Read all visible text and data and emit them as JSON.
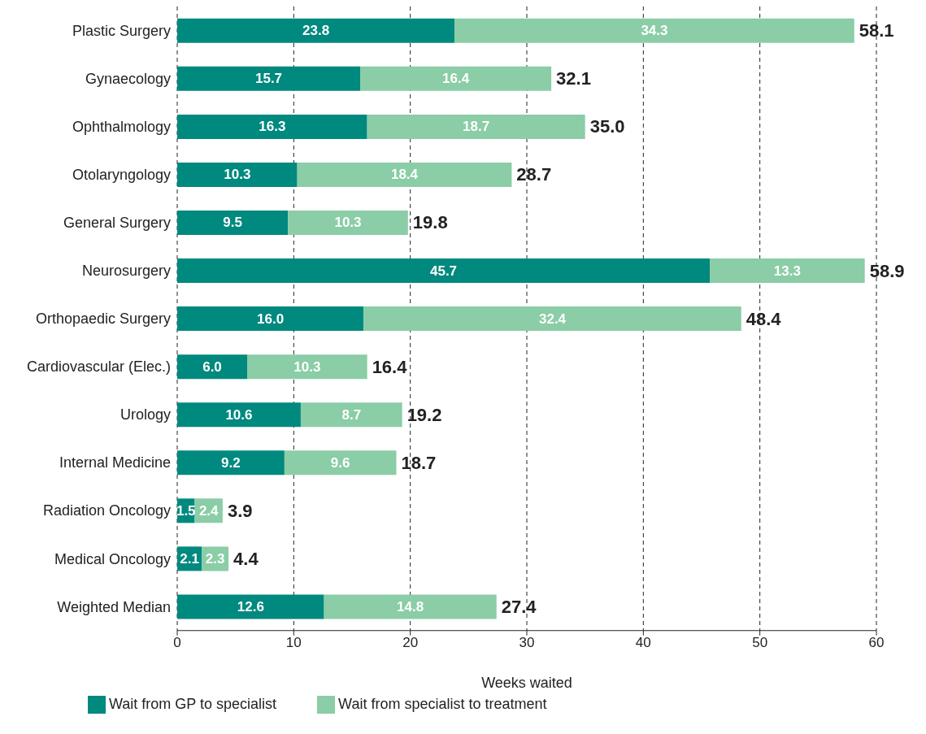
{
  "chart_data": {
    "type": "bar",
    "orientation": "horizontal",
    "stacked": true,
    "xlabel": "Weeks waited",
    "categories": [
      "Plastic Surgery",
      "Gynaecology",
      "Ophthalmology",
      "Otolaryngology",
      "General Surgery",
      "Neurosurgery",
      "Orthopaedic Surgery",
      "Cardiovascular (Elec.)",
      "Urology",
      "Internal Medicine",
      "Radiation Oncology",
      "Medical Oncology",
      "Weighted Median"
    ],
    "series": [
      {
        "name": "Wait from GP to specialist",
        "color": "#00897e",
        "values": [
          23.8,
          15.7,
          16.3,
          10.3,
          9.5,
          45.7,
          16.0,
          6.0,
          10.6,
          9.2,
          1.5,
          2.1,
          12.6
        ],
        "value_labels": [
          "23.8",
          "15.7",
          "16.3",
          "10.3",
          "9.5",
          "45.7",
          "16.0",
          "6.0",
          "10.6",
          "9.2",
          "1.5",
          "2.1",
          "12.6"
        ]
      },
      {
        "name": "Wait from specialist to treatment",
        "color": "#8acda6",
        "values": [
          34.3,
          16.4,
          18.7,
          18.4,
          10.3,
          13.3,
          32.4,
          10.3,
          8.7,
          9.6,
          2.4,
          2.3,
          14.8
        ],
        "value_labels": [
          "34.3",
          "16.4",
          "18.7",
          "18.4",
          "10.3",
          "13.3",
          "32.4",
          "10.3",
          "8.7",
          "9.6",
          "2.4",
          "2.3",
          "14.8"
        ]
      }
    ],
    "totals": [
      "58.1",
      "32.1",
      "35.0",
      "28.7",
      "19.8",
      "58.9",
      "48.4",
      "16.4",
      "19.2",
      "18.7",
      "3.9",
      "4.4",
      "27.4"
    ],
    "xlim": [
      0,
      60
    ],
    "xticks": [
      0,
      10,
      20,
      30,
      40,
      50,
      60
    ],
    "grid": "x",
    "legend": "bottom left"
  }
}
